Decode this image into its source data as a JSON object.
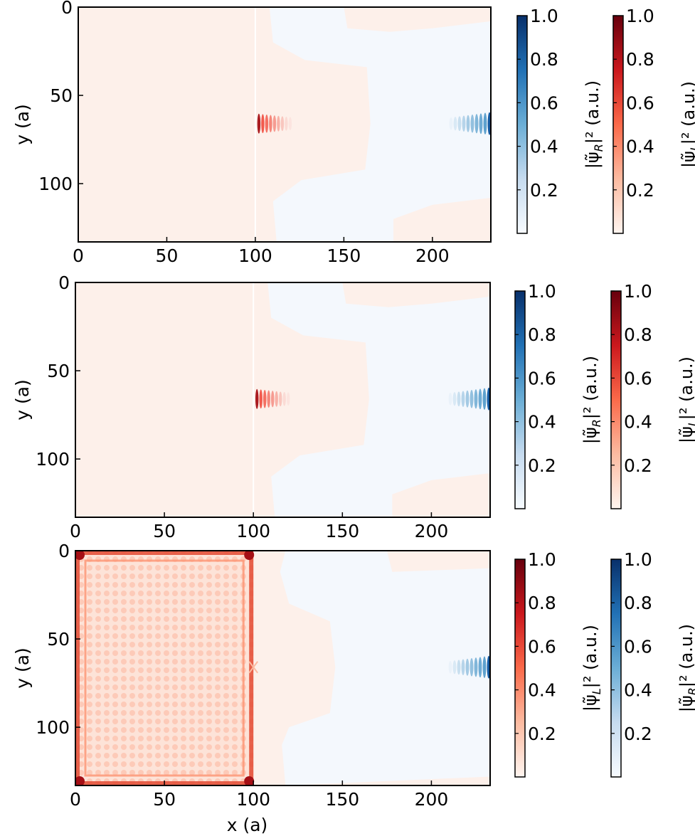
{
  "colors": {
    "blue_dark": "#08306b",
    "blue_light": "#f7fbff",
    "red_dark": "#67000d",
    "red_light": "#fff5f0",
    "right_region_background": "#f4f8fd",
    "left_region_background": "#fdf0ea"
  },
  "chart_data": [
    {
      "type": "heatmap",
      "panel": "top",
      "xlabel": "",
      "ylabel": "y (a)",
      "xlim": [
        0,
        233
      ],
      "ylim": [
        133,
        0
      ],
      "xticks": [
        "0",
        "50",
        "100",
        "150",
        "200"
      ],
      "yticks": [
        "0",
        "50",
        "100"
      ],
      "features": [
        {
          "description": "red wave packet",
          "x": 102,
          "y": 66,
          "field": "L",
          "intensity": 1.0
        },
        {
          "description": "blue wave packet at right edge",
          "x": 233,
          "y": 66,
          "field": "R",
          "intensity": 1.0
        },
        {
          "description": "interface line",
          "x": 100
        }
      ],
      "colorbars": [
        {
          "label": "|ψ̃R|² (a.u.)",
          "label_main": "|ψ̃",
          "label_sub": "R",
          "label_rest": "|² (a.u.)",
          "cmap": "Blues",
          "ticks": [
            "0.2",
            "0.4",
            "0.6",
            "0.8",
            "1.0"
          ]
        },
        {
          "label": "|ψ̃L|² (a.u.)",
          "label_main": "|ψ̃",
          "label_sub": "L",
          "label_rest": "|² (a.u.)",
          "cmap": "Reds",
          "ticks": [
            "0.2",
            "0.4",
            "0.6",
            "0.8",
            "1.0"
          ]
        }
      ]
    },
    {
      "type": "heatmap",
      "panel": "middle",
      "xlabel": "",
      "ylabel": "y (a)",
      "xlim": [
        0,
        233
      ],
      "ylim": [
        133,
        0
      ],
      "xticks": [
        "0",
        "50",
        "100",
        "150",
        "200"
      ],
      "yticks": [
        "0",
        "50",
        "100"
      ],
      "features": [
        {
          "description": "red wave packet",
          "x": 102,
          "y": 66,
          "field": "L",
          "intensity": 1.0
        },
        {
          "description": "blue wave packet at right edge",
          "x": 233,
          "y": 66,
          "field": "R",
          "intensity": 1.0
        },
        {
          "description": "interface line",
          "x": 100
        }
      ],
      "colorbars": [
        {
          "label": "|ψ̃R|² (a.u.)",
          "label_main": "|ψ̃",
          "label_sub": "R",
          "label_rest": "|² (a.u.)",
          "cmap": "Blues",
          "ticks": [
            "0.2",
            "0.4",
            "0.6",
            "0.8",
            "1.0"
          ]
        },
        {
          "label": "|ψ̃L|² (a.u.)",
          "label_main": "|ψ̃",
          "label_sub": "L",
          "label_rest": "|² (a.u.)",
          "cmap": "Reds",
          "ticks": [
            "0.2",
            "0.4",
            "0.6",
            "0.8",
            "1.0"
          ]
        }
      ]
    },
    {
      "type": "heatmap",
      "panel": "bottom",
      "xlabel": "x (a)",
      "ylabel": "y (a)",
      "xlim": [
        0,
        233
      ],
      "ylim": [
        133,
        0
      ],
      "xticks": [
        "0",
        "50",
        "100",
        "150",
        "200"
      ],
      "yticks": [
        "0",
        "50",
        "100"
      ],
      "features": [
        {
          "description": "red standing-wave pattern filling left region",
          "x_range": [
            0,
            100
          ],
          "y_range": [
            0,
            133
          ],
          "field": "L",
          "intensity": 1.0
        },
        {
          "description": "blue wave packet at right edge",
          "x": 233,
          "y": 66,
          "field": "R",
          "intensity": 1.0
        }
      ],
      "colorbars": [
        {
          "label": "|ψ̃L|² (a.u.)",
          "label_main": "|ψ̃",
          "label_sub": "L",
          "label_rest": "|² (a.u.)",
          "cmap": "Reds",
          "ticks": [
            "0.2",
            "0.4",
            "0.6",
            "0.8",
            "1.0"
          ]
        },
        {
          "label": "|ψ̃R|² (a.u.)",
          "label_main": "|ψ̃",
          "label_sub": "R",
          "label_rest": "|² (a.u.)",
          "cmap": "Blues",
          "ticks": [
            "0.2",
            "0.4",
            "0.6",
            "0.8",
            "1.0"
          ]
        }
      ]
    }
  ]
}
